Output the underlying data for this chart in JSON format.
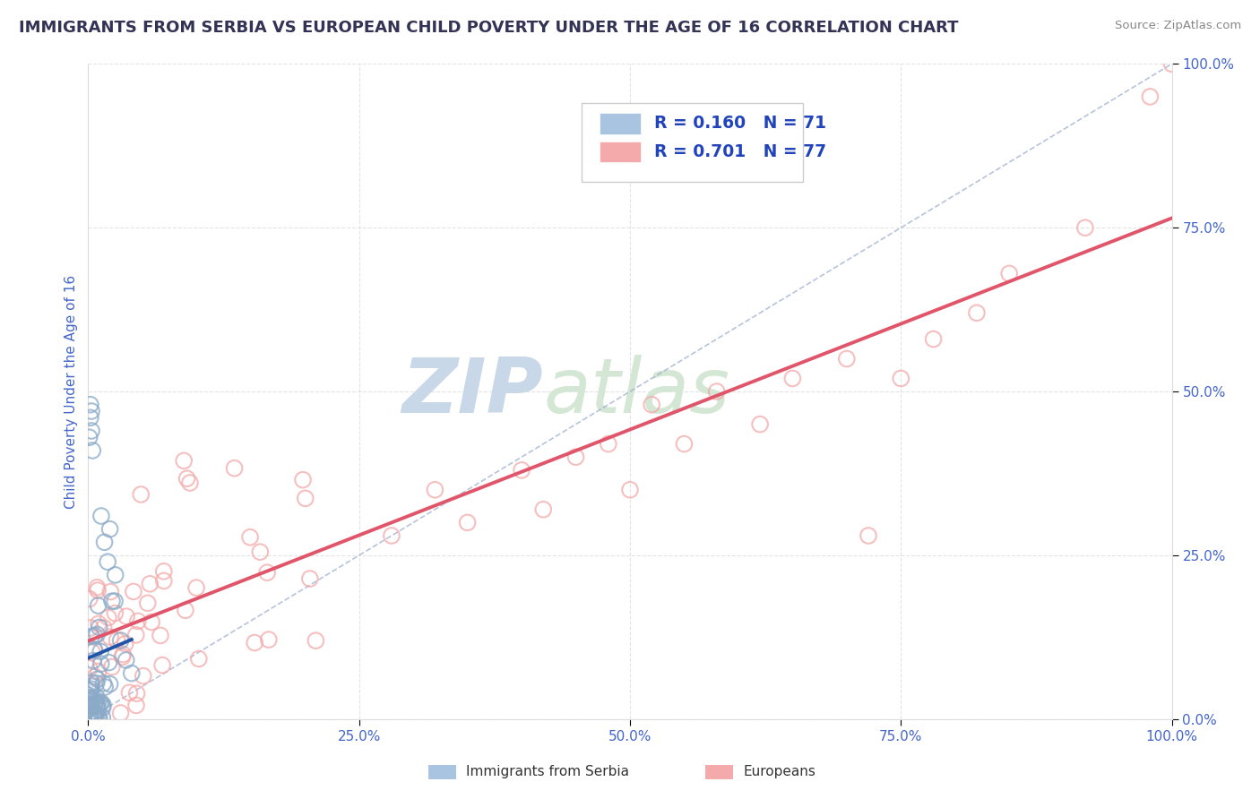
{
  "title": "IMMIGRANTS FROM SERBIA VS EUROPEAN CHILD POVERTY UNDER THE AGE OF 16 CORRELATION CHART",
  "source": "Source: ZipAtlas.com",
  "ylabel": "Child Poverty Under the Age of 16",
  "x_tick_labels": [
    "0.0%",
    "25.0%",
    "50.0%",
    "75.0%",
    "100.0%"
  ],
  "y_tick_labels": [
    "0.0%",
    "25.0%",
    "50.0%",
    "75.0%",
    "100.0%"
  ],
  "legend_items": [
    "Immigrants from Serbia",
    "Europeans"
  ],
  "blue_R": "R = 0.160",
  "blue_N": "N = 71",
  "pink_R": "R = 0.701",
  "pink_N": "N = 77",
  "blue_color": "#A8C4E0",
  "pink_color": "#F4AAAA",
  "blue_scatter_edge": "#8AAAC8",
  "blue_line_color": "#2255AA",
  "pink_line_color": "#E0556A",
  "dashed_line_color": "#99AACC",
  "watermark_color": "#D5E5F0",
  "background_color": "#FFFFFF",
  "grid_color": "#DDDDDD",
  "title_color": "#333355",
  "axis_label_color": "#4466CC",
  "legend_text_color": "#2244BB",
  "xlim": [
    0,
    1
  ],
  "ylim": [
    0,
    1
  ]
}
